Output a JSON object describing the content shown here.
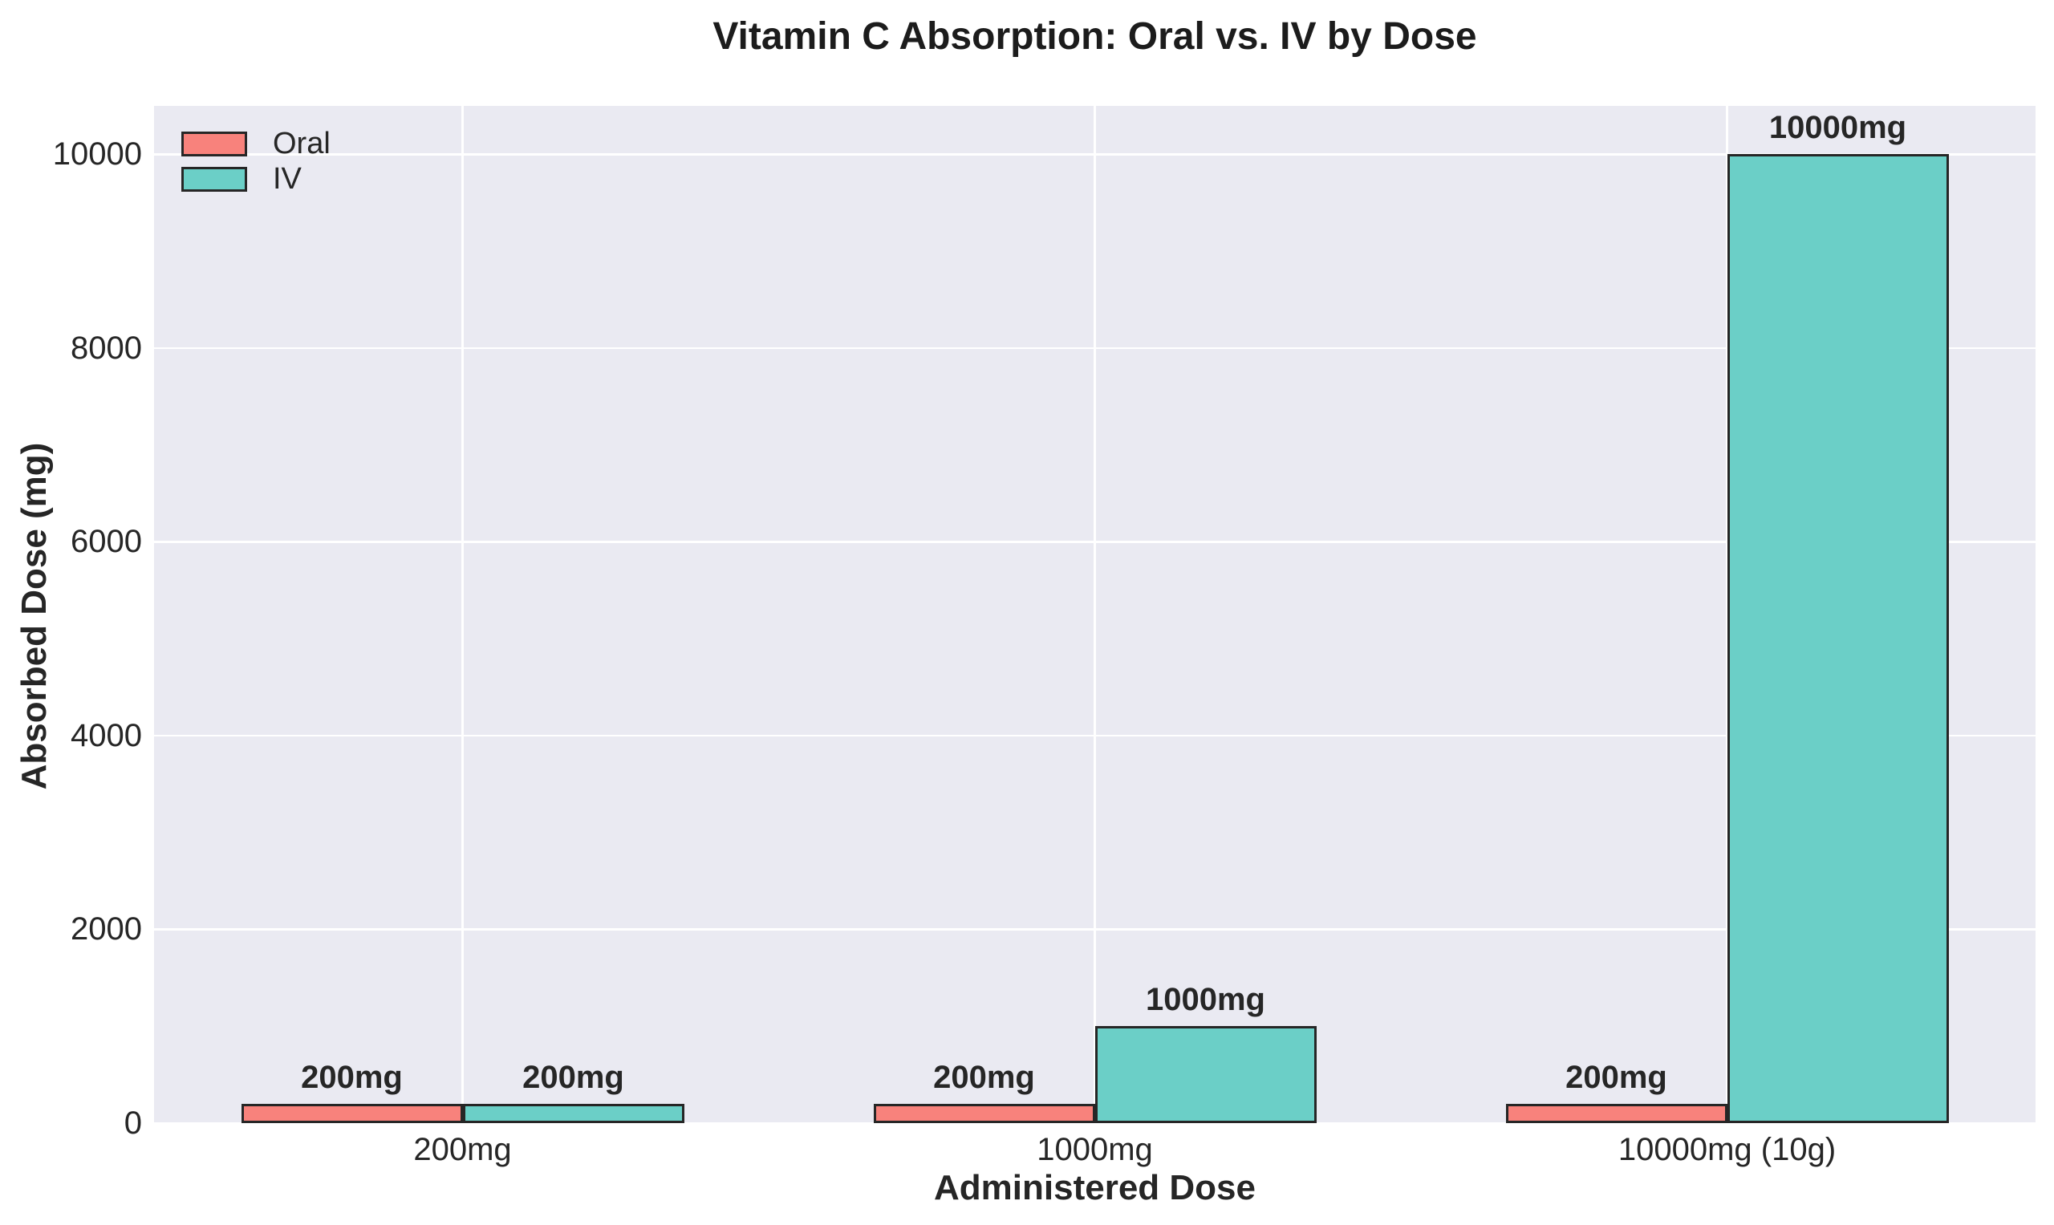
{
  "chart_data": {
    "type": "bar",
    "title": "Vitamin C Absorption: Oral vs. IV by Dose",
    "xlabel": "Administered Dose",
    "ylabel": "Absorbed Dose (mg)",
    "categories": [
      "200mg",
      "1000mg",
      "10000mg (10g)"
    ],
    "series": [
      {
        "name": "Oral",
        "color": "#F8827C",
        "values": [
          200,
          200,
          200
        ],
        "bar_labels": [
          "200mg",
          "200mg",
          "200mg"
        ]
      },
      {
        "name": "IV",
        "color": "#6BCFC7",
        "values": [
          200,
          1000,
          10000
        ],
        "bar_labels": [
          "200mg",
          "1000mg",
          "10000mg"
        ]
      }
    ],
    "yticks": [
      "0",
      "2000",
      "4000",
      "6000",
      "8000",
      "10000"
    ],
    "ylim": [
      0,
      10500
    ],
    "grid": true,
    "legend_position": "upper left",
    "colors": {
      "plot_background": "#EAEAF2",
      "gridline": "#FFFFFF",
      "bar_edge": "#262626",
      "text": "#262626",
      "figure_background": "#FFFFFF"
    }
  }
}
